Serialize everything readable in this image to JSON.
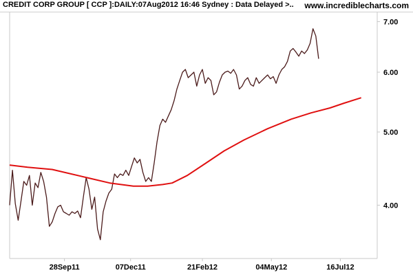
{
  "header": {
    "title": "CREDIT CORP GROUP [ CCP ]:DAILY:07Aug2012 16:46 Sydney : Data Delayed >..",
    "source": "www.incrediblecharts.com"
  },
  "colors": {
    "price": "#4a1a1a",
    "moving_average": "#e01010",
    "frame": "#c8c8c8",
    "text": "#000000",
    "background": "#ffffff"
  },
  "chart_data": {
    "type": "line",
    "title": "CREDIT CORP GROUP [ CCP ]:DAILY:07Aug2012 16:46 Sydney : Data Delayed >..",
    "y_scale": "log",
    "ylim": [
      3.4,
      7.2
    ],
    "y_ticks": [
      4.0,
      5.0,
      6.0,
      7.0
    ],
    "y_tick_labels": [
      "4.00",
      "5.00",
      "6.00",
      "7.00"
    ],
    "xlim": [
      "2011-08-01",
      "2012-08-24"
    ],
    "x_ticks": [
      "2011-09-28",
      "2011-12-07",
      "2012-02-21",
      "2012-05-04",
      "2012-07-16"
    ],
    "x_tick_labels": [
      "28Sep11",
      "07Dec11",
      "21Feb12",
      "04May12",
      "16Jul12"
    ],
    "grid": false,
    "legend": "none",
    "series": [
      {
        "role": "price",
        "points": [
          [
            "2011-08-01",
            4.0
          ],
          [
            "2011-08-04",
            4.45
          ],
          [
            "2011-08-07",
            4.02
          ],
          [
            "2011-08-10",
            3.82
          ],
          [
            "2011-08-13",
            4.05
          ],
          [
            "2011-08-16",
            4.3
          ],
          [
            "2011-08-19",
            4.25
          ],
          [
            "2011-08-22",
            4.38
          ],
          [
            "2011-08-25",
            4.0
          ],
          [
            "2011-08-28",
            4.28
          ],
          [
            "2011-08-31",
            4.22
          ],
          [
            "2011-09-03",
            4.42
          ],
          [
            "2011-09-06",
            4.3
          ],
          [
            "2011-09-09",
            4.1
          ],
          [
            "2011-09-12",
            3.75
          ],
          [
            "2011-09-15",
            3.8
          ],
          [
            "2011-09-18",
            3.9
          ],
          [
            "2011-09-21",
            3.98
          ],
          [
            "2011-09-24",
            4.0
          ],
          [
            "2011-09-27",
            3.92
          ],
          [
            "2011-09-30",
            3.9
          ],
          [
            "2011-10-03",
            3.88
          ],
          [
            "2011-10-06",
            3.92
          ],
          [
            "2011-10-09",
            3.9
          ],
          [
            "2011-10-12",
            3.93
          ],
          [
            "2011-10-15",
            3.85
          ],
          [
            "2011-10-18",
            4.1
          ],
          [
            "2011-10-21",
            4.35
          ],
          [
            "2011-10-24",
            4.2
          ],
          [
            "2011-10-27",
            3.95
          ],
          [
            "2011-10-30",
            4.1
          ],
          [
            "2011-11-02",
            3.72
          ],
          [
            "2011-11-05",
            3.6
          ],
          [
            "2011-11-08",
            3.92
          ],
          [
            "2011-11-11",
            4.05
          ],
          [
            "2011-11-14",
            4.15
          ],
          [
            "2011-11-17",
            4.2
          ],
          [
            "2011-11-20",
            4.4
          ],
          [
            "2011-11-23",
            4.35
          ],
          [
            "2011-11-26",
            4.4
          ],
          [
            "2011-11-29",
            4.38
          ],
          [
            "2011-12-02",
            4.45
          ],
          [
            "2011-12-05",
            4.38
          ],
          [
            "2011-12-08",
            4.5
          ],
          [
            "2011-12-11",
            4.62
          ],
          [
            "2011-12-14",
            4.55
          ],
          [
            "2011-12-17",
            4.6
          ],
          [
            "2011-12-20",
            4.42
          ],
          [
            "2011-12-23",
            4.3
          ],
          [
            "2011-12-26",
            4.35
          ],
          [
            "2011-12-29",
            4.3
          ],
          [
            "2012-01-01",
            4.55
          ],
          [
            "2012-01-04",
            4.85
          ],
          [
            "2012-01-07",
            5.1
          ],
          [
            "2012-01-10",
            5.2
          ],
          [
            "2012-01-13",
            5.15
          ],
          [
            "2012-01-16",
            5.25
          ],
          [
            "2012-01-19",
            5.35
          ],
          [
            "2012-01-22",
            5.5
          ],
          [
            "2012-01-25",
            5.7
          ],
          [
            "2012-01-28",
            5.85
          ],
          [
            "2012-01-31",
            6.0
          ],
          [
            "2012-02-03",
            6.05
          ],
          [
            "2012-02-06",
            5.9
          ],
          [
            "2012-02-09",
            5.95
          ],
          [
            "2012-02-12",
            6.0
          ],
          [
            "2012-02-15",
            5.75
          ],
          [
            "2012-02-18",
            5.95
          ],
          [
            "2012-02-21",
            6.05
          ],
          [
            "2012-02-24",
            5.8
          ],
          [
            "2012-02-27",
            5.9
          ],
          [
            "2012-03-01",
            5.85
          ],
          [
            "2012-03-04",
            5.6
          ],
          [
            "2012-03-07",
            5.65
          ],
          [
            "2012-03-10",
            5.82
          ],
          [
            "2012-03-13",
            5.95
          ],
          [
            "2012-03-16",
            6.0
          ],
          [
            "2012-03-19",
            6.02
          ],
          [
            "2012-03-22",
            5.98
          ],
          [
            "2012-03-25",
            6.05
          ],
          [
            "2012-03-28",
            5.95
          ],
          [
            "2012-03-31",
            5.7
          ],
          [
            "2012-04-03",
            5.75
          ],
          [
            "2012-04-06",
            5.85
          ],
          [
            "2012-04-09",
            5.9
          ],
          [
            "2012-04-12",
            5.78
          ],
          [
            "2012-04-15",
            5.75
          ],
          [
            "2012-04-18",
            5.9
          ],
          [
            "2012-04-21",
            5.8
          ],
          [
            "2012-04-24",
            5.85
          ],
          [
            "2012-04-27",
            5.9
          ],
          [
            "2012-04-30",
            5.95
          ],
          [
            "2012-05-03",
            5.88
          ],
          [
            "2012-05-06",
            5.92
          ],
          [
            "2012-05-09",
            5.8
          ],
          [
            "2012-05-12",
            5.95
          ],
          [
            "2012-05-15",
            6.05
          ],
          [
            "2012-05-18",
            6.1
          ],
          [
            "2012-05-21",
            6.2
          ],
          [
            "2012-05-24",
            6.4
          ],
          [
            "2012-05-27",
            6.45
          ],
          [
            "2012-05-30",
            6.38
          ],
          [
            "2012-06-02",
            6.3
          ],
          [
            "2012-06-05",
            6.4
          ],
          [
            "2012-06-08",
            6.35
          ],
          [
            "2012-06-11",
            6.42
          ],
          [
            "2012-06-14",
            6.55
          ],
          [
            "2012-06-17",
            6.85
          ],
          [
            "2012-06-20",
            6.7
          ],
          [
            "2012-06-23",
            6.25
          ]
        ]
      },
      {
        "role": "moving_average",
        "points": [
          [
            "2011-08-01",
            4.52
          ],
          [
            "2011-08-20",
            4.49
          ],
          [
            "2011-09-15",
            4.46
          ],
          [
            "2011-10-15",
            4.37
          ],
          [
            "2011-11-15",
            4.28
          ],
          [
            "2011-12-10",
            4.24
          ],
          [
            "2011-12-25",
            4.24
          ],
          [
            "2012-01-10",
            4.26
          ],
          [
            "2012-01-20",
            4.28
          ],
          [
            "2012-02-05",
            4.38
          ],
          [
            "2012-02-25",
            4.55
          ],
          [
            "2012-03-15",
            4.72
          ],
          [
            "2012-04-05",
            4.88
          ],
          [
            "2012-04-30",
            5.05
          ],
          [
            "2012-05-25",
            5.2
          ],
          [
            "2012-06-15",
            5.3
          ],
          [
            "2012-07-05",
            5.38
          ],
          [
            "2012-07-20",
            5.46
          ],
          [
            "2012-08-07",
            5.55
          ]
        ]
      }
    ]
  }
}
